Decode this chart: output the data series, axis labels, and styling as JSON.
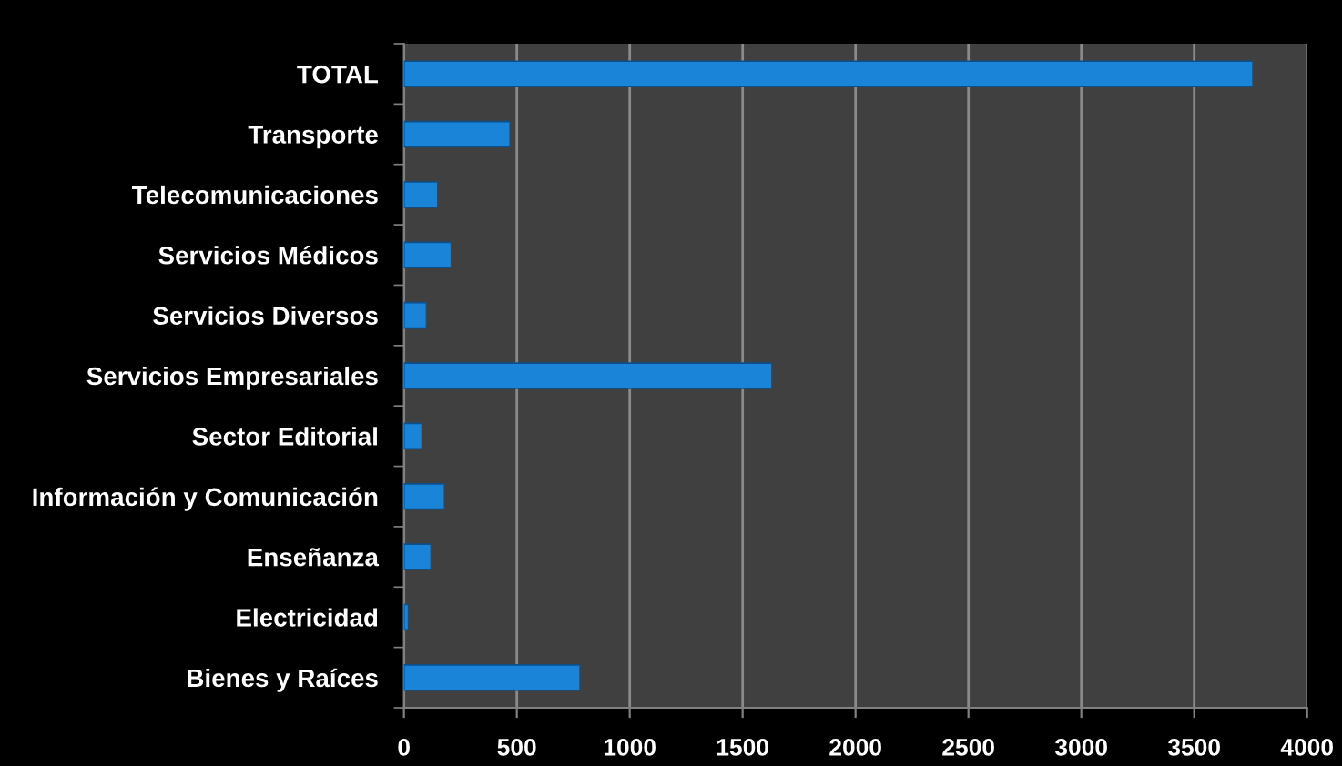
{
  "chart_data": {
    "type": "bar",
    "orientation": "horizontal",
    "categories": [
      "TOTAL",
      "Transporte",
      "Telecomunicaciones",
      "Servicios Médicos",
      "Servicios Diversos",
      "Servicios Empresariales",
      "Sector Editorial",
      "Información y Comunicación",
      "Enseñanza",
      "Electricidad",
      "Bienes y Raíces"
    ],
    "values": [
      3760,
      470,
      150,
      210,
      100,
      1630,
      80,
      180,
      120,
      20,
      780
    ],
    "color": "#1a84d8",
    "xlim": [
      0,
      4000
    ],
    "xticks": [
      0,
      500,
      1000,
      1500,
      2000,
      2500,
      3000,
      3500,
      4000
    ],
    "grid": "x"
  }
}
